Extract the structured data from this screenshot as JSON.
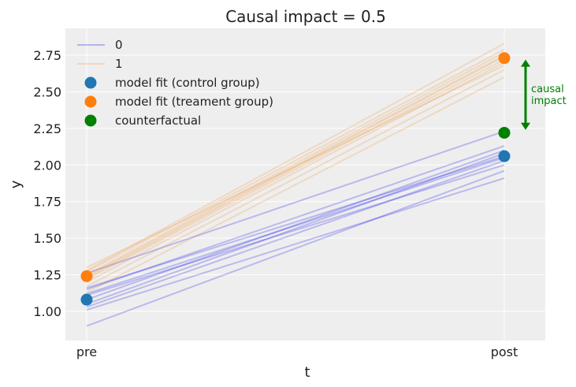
{
  "chart_data": {
    "type": "line",
    "title": "Causal impact = 0.5",
    "xlabel": "t",
    "ylabel": "y",
    "categories": [
      "pre",
      "post"
    ],
    "ylim": [
      0.8,
      2.93
    ],
    "yticks": [
      "1.00",
      "1.25",
      "1.50",
      "1.75",
      "2.00",
      "2.25",
      "2.50",
      "2.75"
    ],
    "grid": true,
    "legend_position": "top-left",
    "series": [
      {
        "name": "0",
        "color": "#0000ee",
        "lines": [
          [
            0.9,
            1.96
          ],
          [
            1.01,
            1.91
          ],
          [
            1.03,
            2.03
          ],
          [
            1.05,
            2.08
          ],
          [
            1.08,
            2.1
          ],
          [
            1.11,
            2.0
          ],
          [
            1.15,
            2.13
          ],
          [
            1.16,
            2.06
          ],
          [
            1.26,
            2.23
          ],
          [
            1.12,
            2.05
          ]
        ]
      },
      {
        "name": "1",
        "color": "#f28e2b",
        "lines": [
          [
            1.13,
            2.6
          ],
          [
            1.17,
            2.65
          ],
          [
            1.2,
            2.7
          ],
          [
            1.22,
            2.72
          ],
          [
            1.23,
            2.74
          ],
          [
            1.24,
            2.75
          ],
          [
            1.25,
            2.77
          ],
          [
            1.27,
            2.79
          ],
          [
            1.28,
            2.83
          ],
          [
            1.3,
            2.68
          ]
        ]
      }
    ],
    "points": [
      {
        "name": "model fit (control group)",
        "color": "#1f77b4",
        "values": [
          1.08,
          2.06
        ]
      },
      {
        "name": "model fit (treament group)",
        "color": "#ff7f0e",
        "values": [
          1.24,
          2.73
        ]
      },
      {
        "name": "counterfactual",
        "color": "#008000",
        "values": [
          null,
          2.22
        ]
      }
    ],
    "annotation": {
      "text_line1": "causal",
      "text_line2": "impact",
      "color": "#008000",
      "from": 2.24,
      "to": 2.72
    }
  }
}
